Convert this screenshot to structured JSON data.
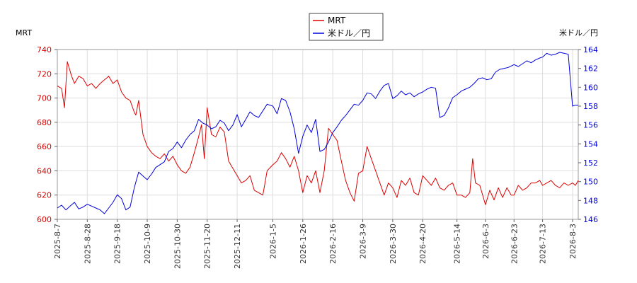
{
  "chart_data": {
    "type": "line",
    "y_left_label": "MRT",
    "y_right_label": "米ドル／円",
    "ylim_left": [
      600,
      740
    ],
    "ylim_right": [
      146,
      164
    ],
    "yticks_left": [
      600,
      620,
      640,
      660,
      680,
      700,
      720,
      740
    ],
    "yticks_right": [
      146,
      148,
      150,
      152,
      154,
      156,
      158,
      160,
      162,
      164
    ],
    "xlim": [
      "2025-08-07",
      "2026-08-07"
    ],
    "x_ticks": [
      "2025-8-7",
      "2025-8-28",
      "2025-9-18",
      "2025-10-9",
      "2025-10-30",
      "2025-11-20",
      "2025-12-11",
      "2026-1-5",
      "2026-1-26",
      "2026-2-16",
      "2026-3-9",
      "2026-3-30",
      "2026-4-20",
      "2026-5-14",
      "2026-6-3",
      "2026-6-23",
      "2026-7-13",
      "2026-8-3"
    ],
    "grid": true,
    "legend_position": "top-center",
    "series": [
      {
        "name": "MRT",
        "axis": "left",
        "color": "#dd0000",
        "x": [
          "2025-08-07",
          "2025-08-10",
          "2025-08-12",
          "2025-08-14",
          "2025-08-17",
          "2025-08-19",
          "2025-08-22",
          "2025-08-25",
          "2025-08-28",
          "2025-08-31",
          "2025-09-03",
          "2025-09-06",
          "2025-09-09",
          "2025-09-12",
          "2025-09-15",
          "2025-09-18",
          "2025-09-21",
          "2025-09-24",
          "2025-09-27",
          "2025-09-30",
          "2025-10-01",
          "2025-10-03",
          "2025-10-06",
          "2025-10-09",
          "2025-10-12",
          "2025-10-15",
          "2025-10-18",
          "2025-10-21",
          "2025-10-24",
          "2025-10-27",
          "2025-10-30",
          "2025-11-02",
          "2025-11-05",
          "2025-11-08",
          "2025-11-11",
          "2025-11-14",
          "2025-11-16",
          "2025-11-18",
          "2025-11-20",
          "2025-11-23",
          "2025-11-26",
          "2025-11-29",
          "2025-12-02",
          "2025-12-05",
          "2025-12-08",
          "2025-12-11",
          "2025-12-14",
          "2025-12-17",
          "2025-12-20",
          "2025-12-23",
          "2025-12-26",
          "2025-12-29",
          "2026-01-01",
          "2026-01-05",
          "2026-01-08",
          "2026-01-11",
          "2026-01-14",
          "2026-01-17",
          "2026-01-20",
          "2026-01-23",
          "2026-01-26",
          "2026-01-29",
          "2026-02-01",
          "2026-02-04",
          "2026-02-07",
          "2026-02-10",
          "2026-02-13",
          "2026-02-16",
          "2026-02-19",
          "2026-02-22",
          "2026-02-25",
          "2026-02-28",
          "2026-03-03",
          "2026-03-06",
          "2026-03-09",
          "2026-03-12",
          "2026-03-15",
          "2026-03-18",
          "2026-03-21",
          "2026-03-24",
          "2026-03-27",
          "2026-03-30",
          "2026-04-02",
          "2026-04-05",
          "2026-04-08",
          "2026-04-11",
          "2026-04-14",
          "2026-04-17",
          "2026-04-20",
          "2026-04-23",
          "2026-04-26",
          "2026-04-29",
          "2026-05-02",
          "2026-05-05",
          "2026-05-08",
          "2026-05-11",
          "2026-05-14",
          "2026-05-17",
          "2026-05-20",
          "2026-05-23",
          "2026-05-25",
          "2026-05-27",
          "2026-05-30",
          "2026-06-03",
          "2026-06-06",
          "2026-06-09",
          "2026-06-12",
          "2026-06-15",
          "2026-06-18",
          "2026-06-21",
          "2026-06-23",
          "2026-06-26",
          "2026-06-29",
          "2026-07-02",
          "2026-07-05",
          "2026-07-08",
          "2026-07-11",
          "2026-07-13",
          "2026-07-16",
          "2026-07-19",
          "2026-07-22",
          "2026-07-25",
          "2026-07-28",
          "2026-07-31",
          "2026-08-03",
          "2026-08-05",
          "2026-08-07"
        ],
        "values": [
          710,
          708,
          692,
          730,
          718,
          712,
          718,
          716,
          710,
          712,
          708,
          712,
          715,
          718,
          712,
          715,
          705,
          700,
          698,
          688,
          686,
          698,
          670,
          660,
          655,
          652,
          650,
          654,
          648,
          652,
          645,
          640,
          638,
          643,
          655,
          668,
          678,
          650,
          692,
          670,
          668,
          676,
          672,
          648,
          642,
          636,
          630,
          632,
          636,
          624,
          622,
          620,
          640,
          645,
          648,
          655,
          650,
          643,
          652,
          640,
          622,
          636,
          630,
          640,
          622,
          640,
          675,
          670,
          665,
          648,
          632,
          622,
          615,
          638,
          640,
          660,
          650,
          640,
          630,
          620,
          630,
          626,
          618,
          632,
          628,
          634,
          622,
          620,
          636,
          632,
          628,
          634,
          626,
          624,
          628,
          630,
          620,
          620,
          618,
          622,
          650,
          630,
          628,
          612,
          624,
          616,
          626,
          618,
          626,
          620,
          620,
          628,
          624,
          626,
          630,
          630,
          632,
          628,
          630,
          632,
          628,
          626,
          630,
          628,
          630,
          628,
          632
        ],
        "values_note": ""
      },
      {
        "name": "米ドル／円",
        "axis": "right",
        "color": "#0000dd",
        "x": [
          "2025-08-07",
          "2025-08-10",
          "2025-08-13",
          "2025-08-16",
          "2025-08-19",
          "2025-08-22",
          "2025-08-25",
          "2025-08-28",
          "2025-08-31",
          "2025-09-03",
          "2025-09-06",
          "2025-09-09",
          "2025-09-12",
          "2025-09-15",
          "2025-09-18",
          "2025-09-21",
          "2025-09-24",
          "2025-09-27",
          "2025-09-30",
          "2025-10-03",
          "2025-10-06",
          "2025-10-09",
          "2025-10-12",
          "2025-10-15",
          "2025-10-18",
          "2025-10-21",
          "2025-10-24",
          "2025-10-27",
          "2025-10-30",
          "2025-11-02",
          "2025-11-05",
          "2025-11-08",
          "2025-11-11",
          "2025-11-14",
          "2025-11-17",
          "2025-11-20",
          "2025-11-23",
          "2025-11-26",
          "2025-11-29",
          "2025-12-02",
          "2025-12-05",
          "2025-12-08",
          "2025-12-11",
          "2025-12-14",
          "2025-12-17",
          "2025-12-20",
          "2025-12-23",
          "2025-12-26",
          "2025-12-29",
          "2026-01-01",
          "2026-01-05",
          "2026-01-08",
          "2026-01-11",
          "2026-01-14",
          "2026-01-17",
          "2026-01-20",
          "2026-01-23",
          "2026-01-26",
          "2026-01-29",
          "2026-02-01",
          "2026-02-04",
          "2026-02-07",
          "2026-02-10",
          "2026-02-13",
          "2026-02-16",
          "2026-02-19",
          "2026-02-22",
          "2026-02-25",
          "2026-02-28",
          "2026-03-03",
          "2026-03-06",
          "2026-03-09",
          "2026-03-12",
          "2026-03-15",
          "2026-03-18",
          "2026-03-21",
          "2026-03-24",
          "2026-03-27",
          "2026-03-30",
          "2026-04-02",
          "2026-04-05",
          "2026-04-08",
          "2026-04-11",
          "2026-04-14",
          "2026-04-17",
          "2026-04-20",
          "2026-04-23",
          "2026-04-26",
          "2026-04-29",
          "2026-05-02",
          "2026-05-05",
          "2026-05-08",
          "2026-05-11",
          "2026-05-14",
          "2026-05-17",
          "2026-05-20",
          "2026-05-23",
          "2026-05-26",
          "2026-05-29",
          "2026-06-01",
          "2026-06-04",
          "2026-06-07",
          "2026-06-10",
          "2026-06-13",
          "2026-06-16",
          "2026-06-19",
          "2026-06-23",
          "2026-06-26",
          "2026-06-29",
          "2026-07-02",
          "2026-07-05",
          "2026-07-08",
          "2026-07-11",
          "2026-07-13",
          "2026-07-16",
          "2026-07-19",
          "2026-07-22",
          "2026-07-25",
          "2026-07-28",
          "2026-07-31",
          "2026-08-03",
          "2026-08-05",
          "2026-08-07"
        ],
        "values": [
          147.2,
          147.5,
          147.0,
          147.4,
          147.8,
          147.1,
          147.3,
          147.6,
          147.4,
          147.2,
          147.0,
          146.6,
          147.2,
          147.8,
          148.6,
          148.2,
          147.0,
          147.3,
          149.4,
          151.0,
          150.6,
          150.2,
          150.8,
          151.5,
          151.8,
          152.1,
          153.2,
          153.5,
          154.2,
          153.6,
          154.4,
          155.0,
          155.4,
          156.6,
          156.2,
          156.0,
          155.6,
          155.8,
          156.5,
          156.2,
          155.4,
          156.0,
          157.1,
          155.8,
          156.6,
          157.4,
          157.0,
          156.8,
          157.5,
          158.2,
          158.0,
          157.2,
          158.8,
          158.6,
          157.4,
          155.6,
          153.0,
          154.8,
          156.0,
          155.2,
          156.6,
          153.2,
          153.4,
          154.2,
          155.2,
          155.8,
          156.5,
          157.0,
          157.6,
          158.2,
          158.1,
          158.6,
          159.4,
          159.3,
          158.8,
          159.6,
          160.2,
          160.4,
          158.8,
          159.1,
          159.6,
          159.2,
          159.4,
          159.0,
          159.3,
          159.5,
          159.8,
          160.0,
          159.9,
          156.8,
          157.0,
          157.8,
          158.9,
          159.2,
          159.6,
          159.8,
          160.0,
          160.4,
          160.9,
          161.0,
          160.8,
          160.9,
          161.6,
          161.9,
          162.0,
          162.1,
          162.4,
          162.2,
          162.5,
          162.8,
          162.6,
          162.9,
          163.1,
          163.2,
          163.6,
          163.4,
          163.5,
          163.7,
          163.6,
          163.5,
          158.0,
          158.1,
          158.1
        ],
        "values_note": ""
      }
    ]
  }
}
